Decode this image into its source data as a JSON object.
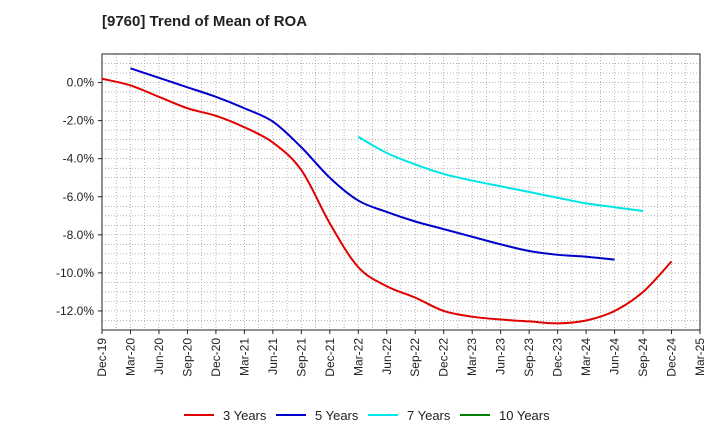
{
  "chart_data": {
    "type": "line",
    "title": "[9760]  Trend of Mean of ROA",
    "xlabel": "",
    "ylabel": "",
    "ylim": [
      -13.0,
      1.5
    ],
    "yticks": [
      0,
      -2,
      -4,
      -6,
      -8,
      -10,
      -12
    ],
    "ytick_labels": [
      "0.0%",
      "-2.0%",
      "-4.0%",
      "-6.0%",
      "-8.0%",
      "-10.0%",
      "-12.0%"
    ],
    "x_labels": [
      "Dec-19",
      "Mar-20",
      "Jun-20",
      "Sep-20",
      "Dec-20",
      "Mar-21",
      "Jun-21",
      "Sep-21",
      "Dec-21",
      "Mar-22",
      "Jun-22",
      "Sep-22",
      "Dec-22",
      "Mar-23",
      "Jun-23",
      "Sep-23",
      "Dec-23",
      "Mar-24",
      "Jun-24",
      "Sep-24",
      "Dec-24",
      "Mar-25"
    ],
    "grid": true,
    "legend_position": "bottom",
    "series": [
      {
        "name": "3 Years",
        "color": "#e00000",
        "start_index": 0,
        "values": [
          0.2,
          -0.15,
          -0.75,
          -1.35,
          -1.75,
          -2.35,
          -3.15,
          -4.6,
          -7.4,
          -9.7,
          -10.7,
          -11.3,
          -12.0,
          -12.3,
          -12.45,
          -12.55,
          -12.65,
          -12.5,
          -12.0,
          -11.0,
          -9.4
        ]
      },
      {
        "name": "5 Years",
        "color": "#0000cc",
        "start_index": 1,
        "values": [
          0.75,
          0.25,
          -0.25,
          -0.75,
          -1.35,
          -2.05,
          -3.4,
          -5.0,
          -6.2,
          -6.8,
          -7.3,
          -7.7,
          -8.1,
          -8.5,
          -8.85,
          -9.05,
          -9.15,
          -9.3
        ]
      },
      {
        "name": "7 Years",
        "color": "#00e5e5",
        "start_index": 9,
        "values": [
          -2.85,
          -3.7,
          -4.3,
          -4.8,
          -5.15,
          -5.45,
          -5.75,
          -6.05,
          -6.35,
          -6.55,
          -6.75
        ]
      },
      {
        "name": "10 Years",
        "color": "#008000",
        "start_index": 0,
        "values": []
      }
    ]
  }
}
